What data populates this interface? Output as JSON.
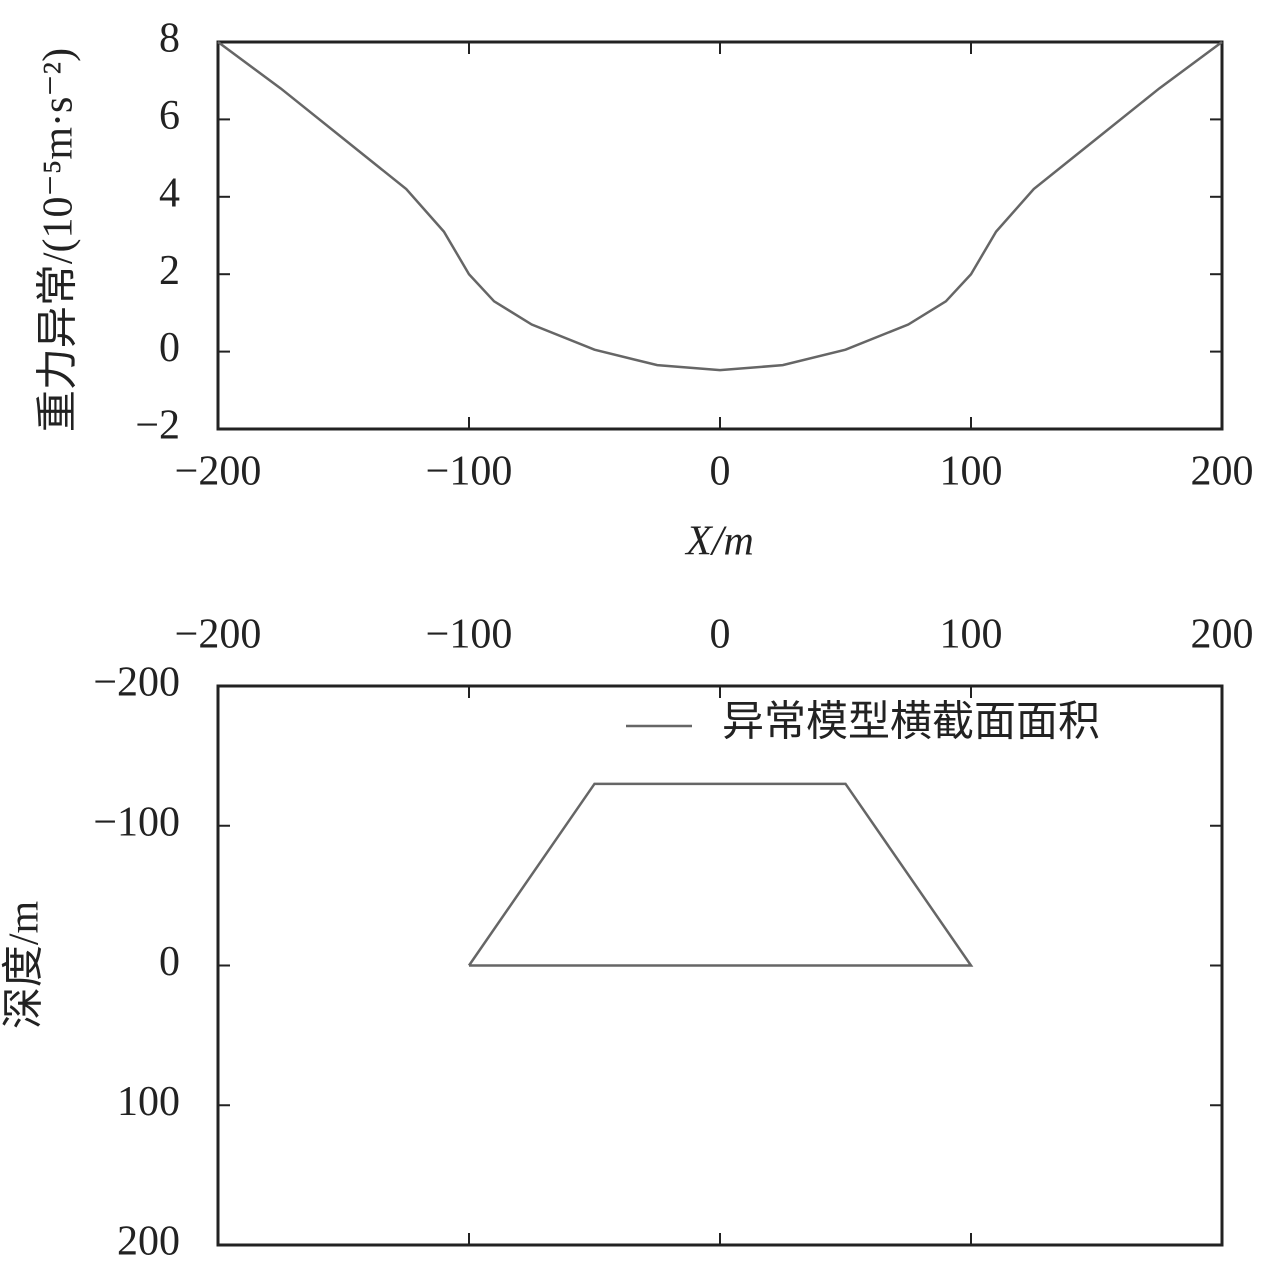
{
  "chart_data": [
    {
      "type": "line",
      "xlabel": "X/m",
      "ylabel": "重力异常/(10⁻⁵m·s⁻²)",
      "x": [
        -200,
        -175,
        -150,
        -125,
        -110,
        -100,
        -90,
        -75,
        -50,
        -25,
        0,
        25,
        50,
        75,
        90,
        100,
        110,
        125,
        150,
        175,
        200
      ],
      "values": [
        8,
        6.8,
        5.5,
        4.2,
        3.1,
        2.0,
        1.3,
        0.7,
        0.05,
        -0.35,
        -0.48,
        -0.35,
        0.05,
        0.7,
        1.3,
        2.0,
        3.1,
        4.2,
        5.5,
        6.8,
        8
      ],
      "color": "#666666",
      "xlim": [
        -200,
        200
      ],
      "xticks": [
        {
          "value": -200,
          "label": "−200"
        },
        {
          "value": -100,
          "label": "−100"
        },
        0,
        100,
        200
      ],
      "ylim": [
        -2,
        8
      ],
      "yticks": [
        {
          "value": -2,
          "label": "−2"
        },
        0,
        2,
        4,
        6,
        8
      ]
    },
    {
      "type": "line",
      "ylabel": "深度/m",
      "xaxis_position": "top",
      "yaxis_inverted": true,
      "legend": "upper right",
      "x": [
        -100,
        -50,
        50,
        100,
        -100
      ],
      "series": [
        {
          "name": "异常模型横截面面积",
          "color": "#666666",
          "values": [
            0,
            -130,
            -130,
            0,
            0
          ]
        }
      ],
      "xlim": [
        -200,
        200
      ],
      "xticks": [
        {
          "value": -200,
          "label": "−200"
        },
        {
          "value": -100,
          "label": "−100"
        },
        0,
        100,
        200
      ],
      "ylim": [
        -200,
        200
      ],
      "yticks": [
        {
          "value": -200,
          "label": "−200"
        },
        {
          "value": -100,
          "label": "−100"
        },
        0,
        100,
        200
      ]
    }
  ]
}
